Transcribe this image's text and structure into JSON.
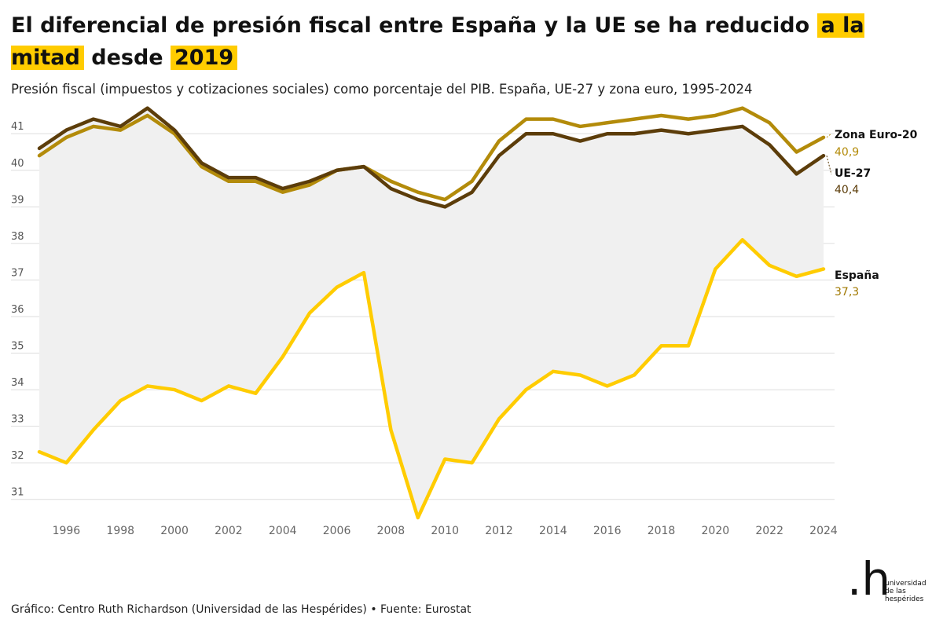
{
  "header": {
    "title_part1": "El diferencial de presión fiscal entre España y la UE se ha reducido",
    "title_highlight": "a la mitad",
    "title_part2": "desde",
    "title_highlight2": "2019",
    "subtitle": "Presión fiscal (impuestos y cotizaciones sociales) como porcentaje del PIB. España, UE-27 y zona euro, 1995-2024"
  },
  "footer": {
    "credit": "Gráfico: Centro Ruth Richardson (Universidad de las Hespérides) • Fuente: Eurostat"
  },
  "logo": {
    "mark": ".h",
    "line1": "universidad",
    "line2": "de las",
    "line3": "hespérides"
  },
  "colors": {
    "zona_euro": "#b38b0a",
    "ue27": "#5c3d0a",
    "espana": "#ffcc00",
    "gap_fill": "#f0f0f0",
    "grid": "#dddddd",
    "highlight": "#ffcc00"
  },
  "chart_data": {
    "type": "line",
    "x": [
      1995,
      1996,
      1997,
      1998,
      1999,
      2000,
      2001,
      2002,
      2003,
      2004,
      2005,
      2006,
      2007,
      2008,
      2009,
      2010,
      2011,
      2012,
      2013,
      2014,
      2015,
      2016,
      2017,
      2018,
      2019,
      2020,
      2021,
      2022,
      2023,
      2024
    ],
    "xticks": [
      1996,
      1998,
      2000,
      2002,
      2004,
      2006,
      2008,
      2010,
      2012,
      2014,
      2016,
      2018,
      2020,
      2022,
      2024
    ],
    "yticks": [
      31,
      32,
      33,
      34,
      35,
      36,
      37,
      38,
      39,
      40,
      41
    ],
    "xlim": [
      1995,
      2024
    ],
    "ylim": [
      30.5,
      41.8
    ],
    "grid": "horizontal",
    "legend": "direct labels at line ends (right)",
    "series": [
      {
        "name": "Zona Euro-20",
        "end_label": "40,9",
        "color": "#b38b0a",
        "values": [
          40.4,
          40.9,
          41.2,
          41.1,
          41.5,
          41.0,
          40.1,
          39.7,
          39.7,
          39.4,
          39.6,
          40.0,
          40.1,
          39.7,
          39.4,
          39.2,
          39.7,
          40.8,
          41.4,
          41.4,
          41.2,
          41.3,
          41.4,
          41.5,
          41.4,
          41.5,
          41.7,
          41.3,
          40.5,
          40.9
        ]
      },
      {
        "name": "UE-27",
        "end_label": "40,4",
        "color": "#5c3d0a",
        "values": [
          40.6,
          41.1,
          41.4,
          41.2,
          41.7,
          41.1,
          40.2,
          39.8,
          39.8,
          39.5,
          39.7,
          40.0,
          40.1,
          39.5,
          39.2,
          39.0,
          39.4,
          40.4,
          41.0,
          41.0,
          40.8,
          41.0,
          41.0,
          41.1,
          41.0,
          41.1,
          41.2,
          40.7,
          39.9,
          40.4
        ]
      },
      {
        "name": "España",
        "end_label": "37,3",
        "color": "#ffcc00",
        "values": [
          32.3,
          32.0,
          32.9,
          33.7,
          34.1,
          34.0,
          33.7,
          34.1,
          33.9,
          34.9,
          36.1,
          36.8,
          37.2,
          32.9,
          30.5,
          32.1,
          32.0,
          33.2,
          34.0,
          34.5,
          34.4,
          34.1,
          34.4,
          35.2,
          35.2,
          37.3,
          38.1,
          37.4,
          37.1,
          37.3
        ]
      }
    ]
  }
}
